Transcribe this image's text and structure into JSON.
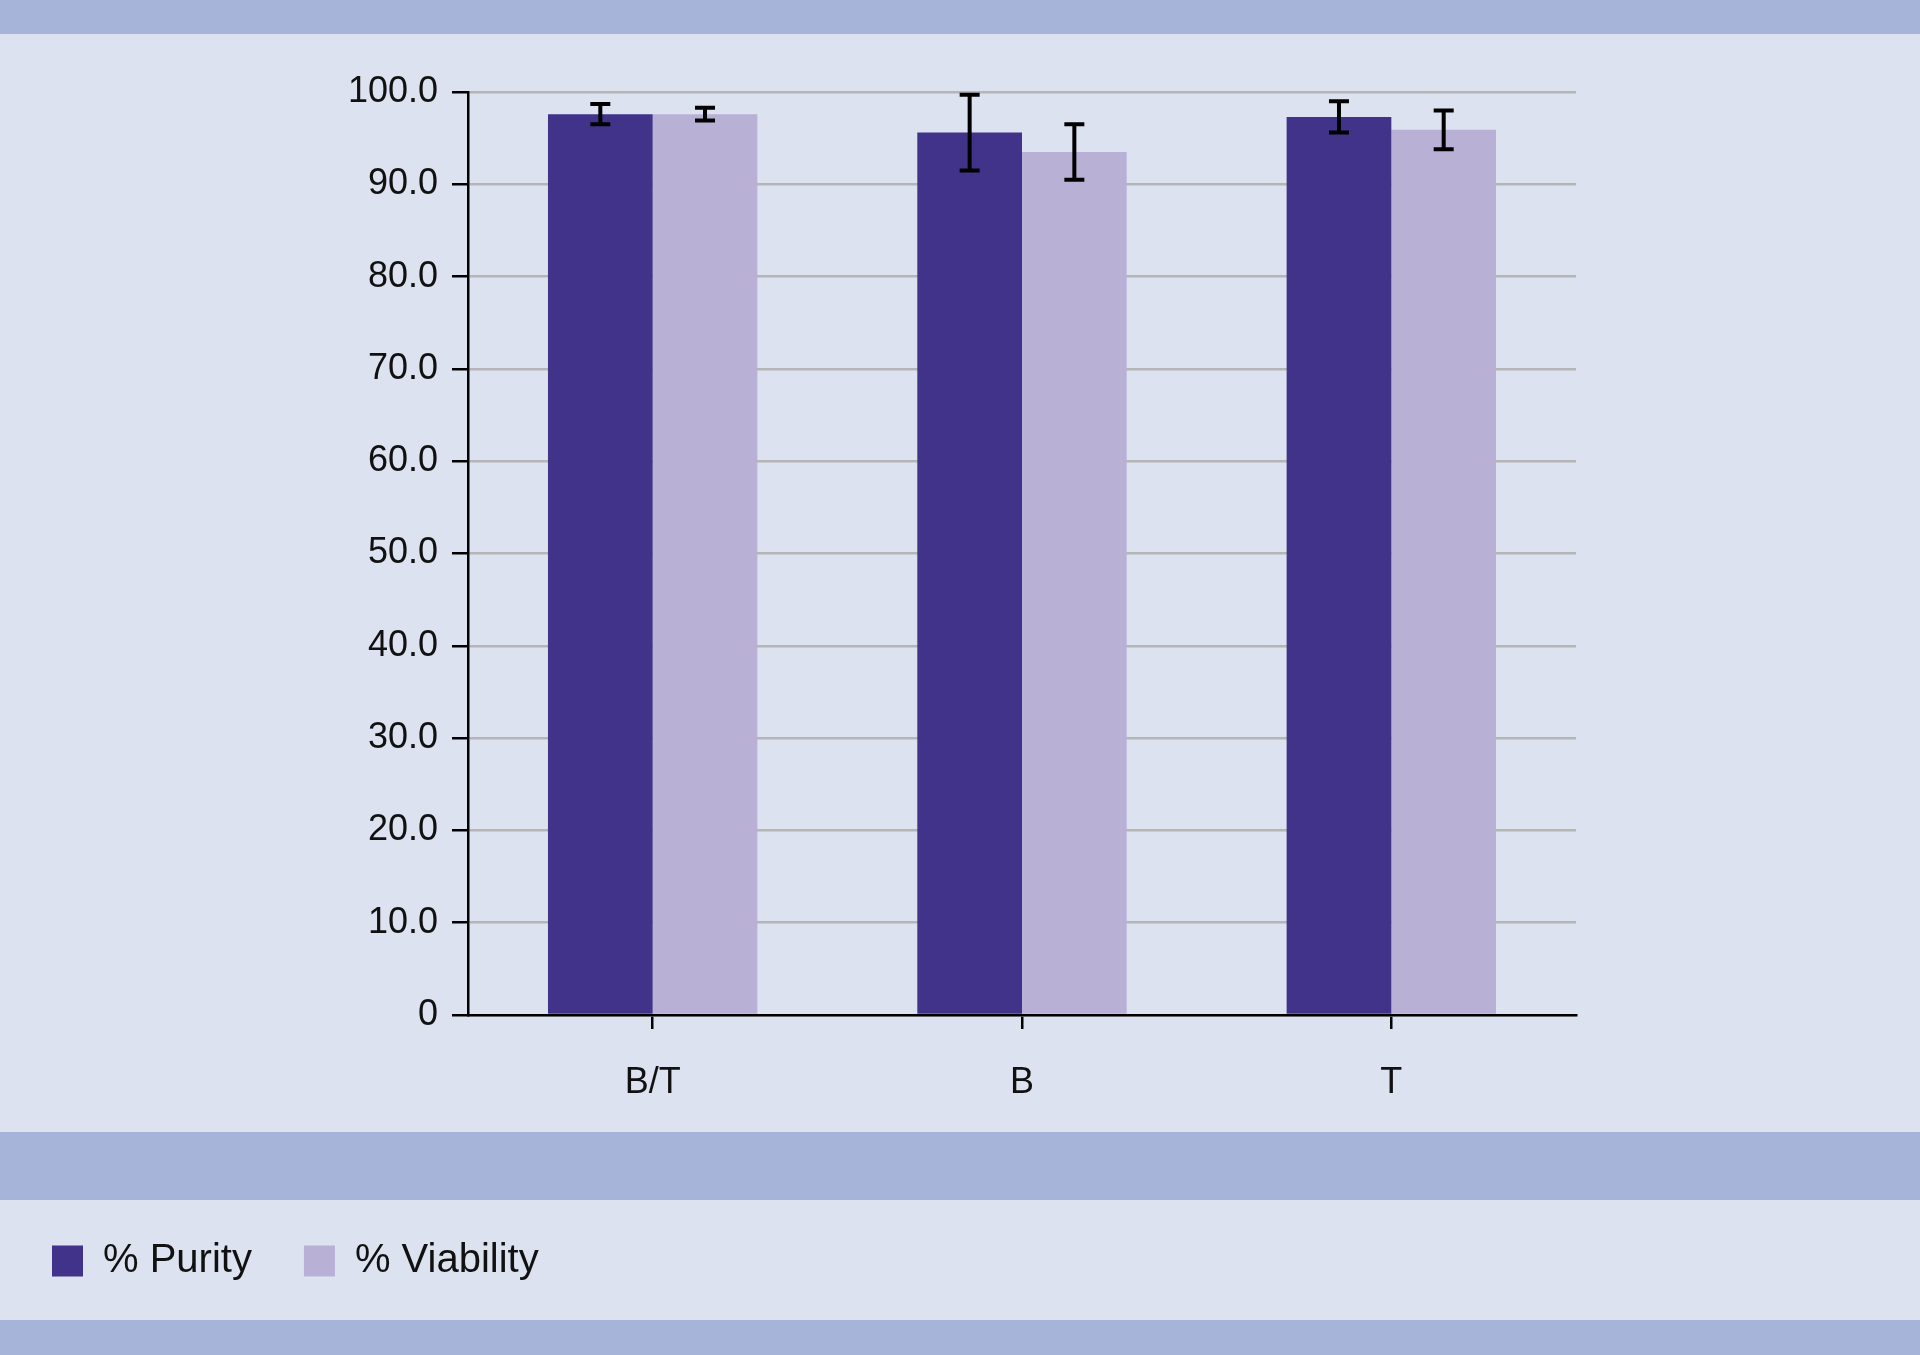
{
  "chart_data": {
    "type": "bar",
    "categories": [
      "B/T",
      "B",
      "T"
    ],
    "series": [
      {
        "name": "% Purity",
        "color": "#41338a",
        "values": [
          97.6,
          95.6,
          97.3
        ],
        "errors": [
          1.1,
          4.1,
          1.7
        ]
      },
      {
        "name": "% Viability",
        "color": "#b9b0d6",
        "values": [
          97.6,
          93.5,
          95.9
        ],
        "errors": [
          0.7,
          3.0,
          2.1
        ]
      }
    ],
    "ylim": [
      0,
      100
    ],
    "yticks": [
      0,
      {
        "value": 10,
        "label": "10.0"
      },
      {
        "value": 20,
        "label": "20.0"
      },
      {
        "value": 30,
        "label": "30.0"
      },
      {
        "value": 40,
        "label": "40.0"
      },
      {
        "value": 50,
        "label": "50.0"
      },
      {
        "value": 60,
        "label": "60.0"
      },
      {
        "value": 70,
        "label": "70.0"
      },
      {
        "value": 80,
        "label": "80.0"
      },
      {
        "value": 90,
        "label": "90.0"
      },
      {
        "value": 100,
        "label": "100.0"
      }
    ],
    "grid": "y",
    "legend": "bottom left"
  }
}
